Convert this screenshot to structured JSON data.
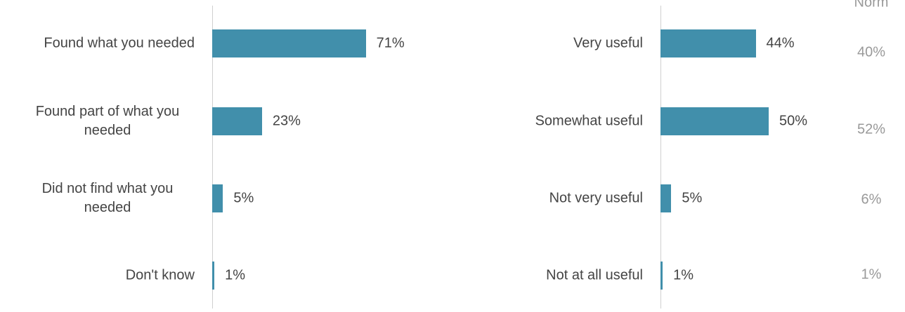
{
  "chart_data": [
    {
      "type": "bar",
      "orientation": "horizontal",
      "color": "#418fab",
      "categories": [
        "Found what you needed",
        "Found part of what you needed",
        "Did not find what you needed",
        "Don't know"
      ],
      "values": [
        71,
        23,
        5,
        1
      ],
      "value_labels": [
        "71%",
        "23%",
        "5%",
        "1%"
      ]
    },
    {
      "type": "bar",
      "orientation": "horizontal",
      "color": "#418fab",
      "categories": [
        "Very useful",
        "Somewhat useful",
        "Not very useful",
        "Not at all useful"
      ],
      "values": [
        44,
        50,
        5,
        1
      ],
      "value_labels": [
        "44%",
        "50%",
        "5%",
        "1%"
      ],
      "norm": {
        "title": "Norm",
        "values": [
          40,
          52,
          6,
          1
        ],
        "value_labels": [
          "40%",
          "52%",
          "6%",
          "1%"
        ]
      }
    }
  ]
}
